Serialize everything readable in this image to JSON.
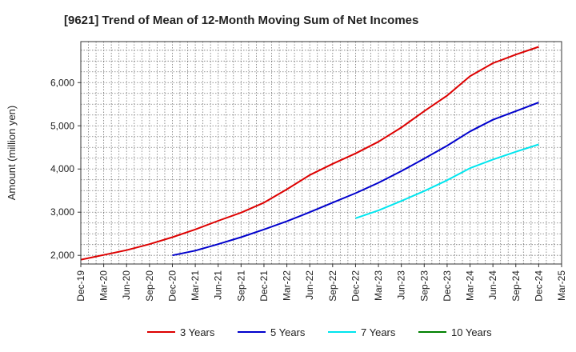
{
  "chart_data": {
    "type": "line",
    "title": "[9621]  Trend of Mean of 12-Month Moving Sum of Net Incomes",
    "ylabel": "Amount (million yen)",
    "xlabel": "",
    "ylim": [
      1800,
      6950
    ],
    "yticks": [
      2000,
      3000,
      4000,
      5000,
      6000
    ],
    "ytick_labels": [
      "2,000",
      "3,000",
      "4,000",
      "5,000",
      "6,000"
    ],
    "x_categories": [
      "Dec-19",
      "Mar-20",
      "Jun-20",
      "Sep-20",
      "Dec-20",
      "Mar-21",
      "Jun-21",
      "Sep-21",
      "Dec-21",
      "Mar-22",
      "Jun-22",
      "Sep-22",
      "Dec-22",
      "Mar-23",
      "Jun-23",
      "Sep-23",
      "Dec-23",
      "Mar-24",
      "Jun-24",
      "Sep-24",
      "Dec-24",
      "Mar-25"
    ],
    "grid": true,
    "legend_position": "bottom",
    "series": [
      {
        "name": "3 Years",
        "color": "#dd0000",
        "start_index": 0,
        "values": [
          1900,
          2010,
          2120,
          2260,
          2420,
          2600,
          2800,
          2990,
          3220,
          3530,
          3860,
          4120,
          4360,
          4630,
          4960,
          5340,
          5700,
          6150,
          6450,
          6650,
          6830
        ]
      },
      {
        "name": "5 Years",
        "color": "#0000cc",
        "start_index": 4,
        "values": [
          2000,
          2110,
          2260,
          2420,
          2600,
          2790,
          3000,
          3220,
          3440,
          3680,
          3950,
          4240,
          4540,
          4870,
          5140,
          5340,
          5540
        ]
      },
      {
        "name": "7 Years",
        "color": "#00e5ee",
        "start_index": 12,
        "values": [
          2860,
          3040,
          3260,
          3490,
          3740,
          4020,
          4220,
          4400,
          4570
        ]
      },
      {
        "name": "10 Years",
        "color": "#008000",
        "start_index": 0,
        "values": []
      }
    ]
  }
}
